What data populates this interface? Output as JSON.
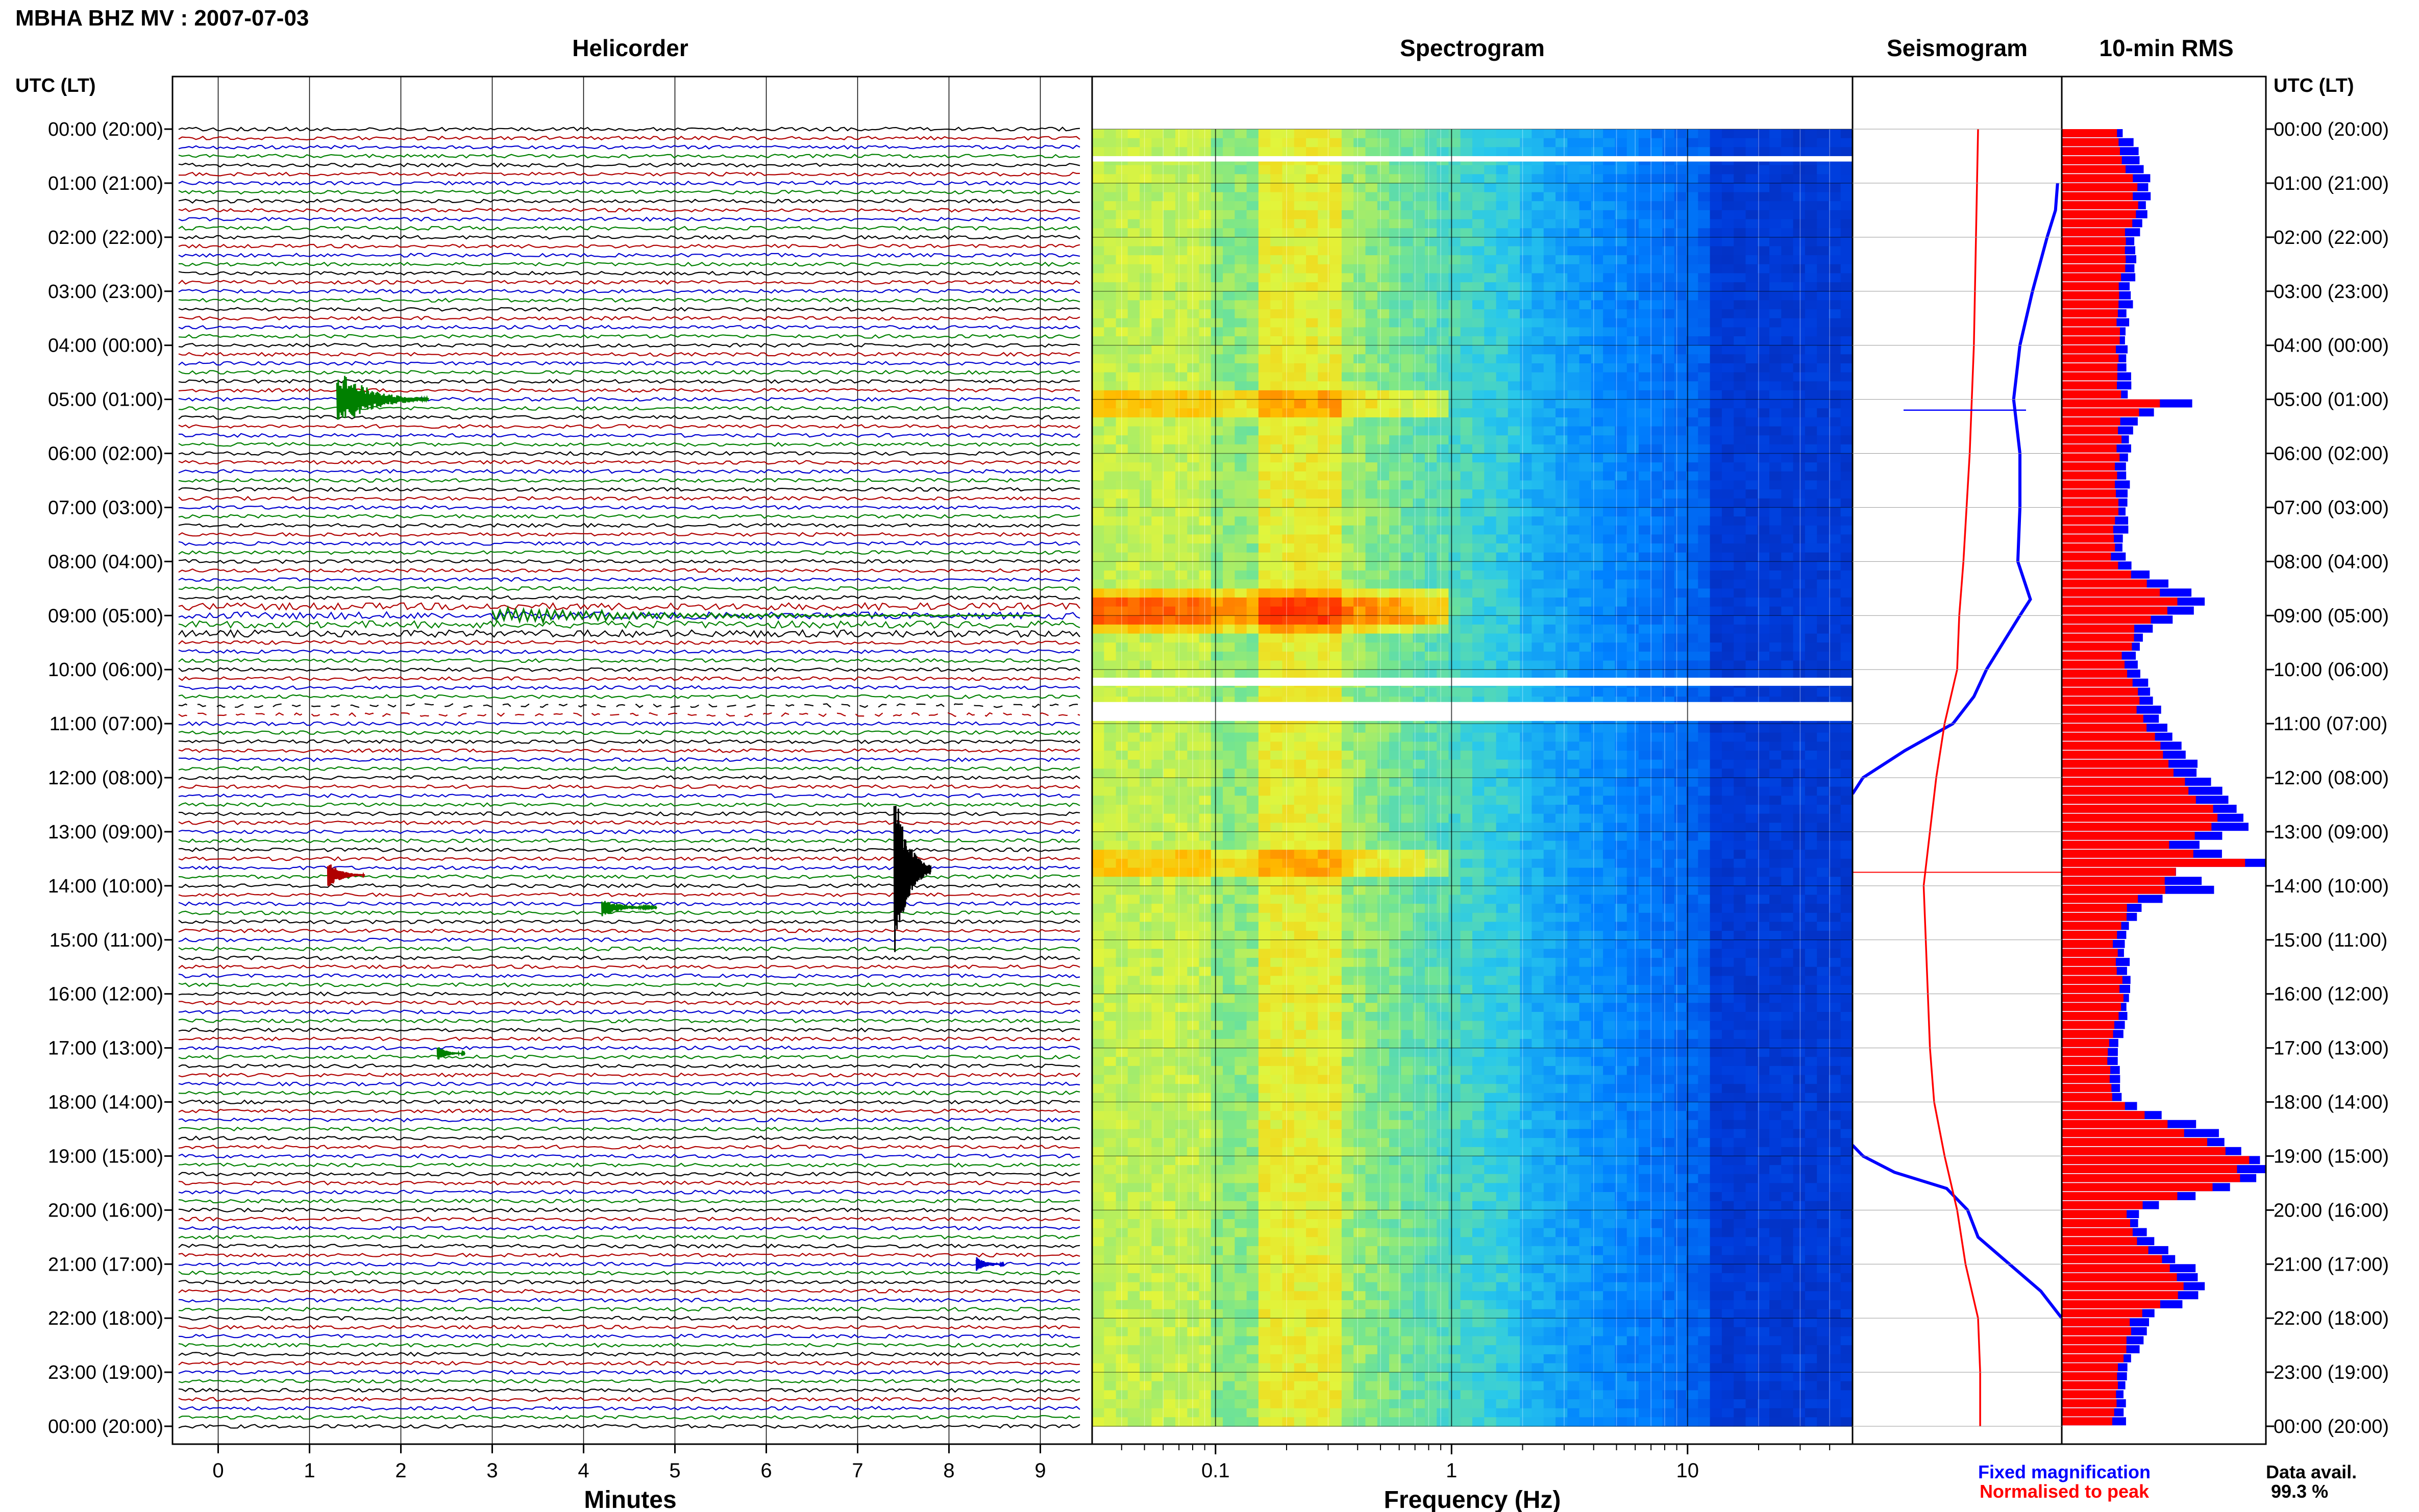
{
  "header": {
    "title": "MBHA BHZ MV : 2007-07-03",
    "panel_titles": [
      "Helicorder",
      "Spectrogram",
      "Seismogram",
      "10-min RMS"
    ],
    "axis_left_title": "UTC (LT)",
    "axis_right_title": "UTC (LT)"
  },
  "footer": {
    "legend_fixed": "Fixed magnification",
    "legend_normalised": "Normalised to peak",
    "data_avail_label": "Data avail.",
    "data_avail_value": "99.3 %"
  },
  "colors": {
    "fixed": "#0000ff",
    "normalised": "#ff0000",
    "trace_colors": [
      "#000000",
      "#b00000",
      "#0000d0",
      "#008000"
    ],
    "spectrogram_low": "#0a22a0",
    "spectrogram_high": "#ff2a00"
  },
  "chart_data": [
    {
      "type": "line",
      "name": "helicorder",
      "title": "Helicorder",
      "xlabel": "Minutes",
      "xticks": [
        "0",
        "1",
        "2",
        "3",
        "4",
        "5",
        "6",
        "7",
        "8",
        "9"
      ],
      "xlim": [
        0,
        10
      ],
      "rows_per_hour": 6,
      "time_labels": [
        "00:00 (20:00)",
        "01:00 (21:00)",
        "02:00 (22:00)",
        "03:00 (23:00)",
        "04:00 (00:00)",
        "05:00 (01:00)",
        "06:00 (02:00)",
        "07:00 (03:00)",
        "08:00 (04:00)",
        "09:00 (05:00)",
        "10:00 (06:00)",
        "11:00 (07:00)",
        "12:00 (08:00)",
        "13:00 (09:00)",
        "14:00 (10:00)",
        "15:00 (11:00)",
        "16:00 (12:00)",
        "17:00 (13:00)",
        "18:00 (14:00)",
        "19:00 (15:00)",
        "20:00 (16:00)",
        "21:00 (17:00)",
        "22:00 (18:00)",
        "23:00 (19:00)",
        "00:00 (20:00)"
      ],
      "events": [
        {
          "hour": 5.0,
          "minute": 1.3,
          "amplitude": 3.5,
          "duration_min": 1.0,
          "color": "#008000"
        },
        {
          "hour": 9.0,
          "minute": 3.0,
          "amplitude": 1.0,
          "duration_min": 6.0,
          "color": "#008000"
        },
        {
          "hour": 13.7,
          "minute": 7.4,
          "amplitude": 10.0,
          "duration_min": 0.4,
          "color": "#000000"
        },
        {
          "hour": 13.8,
          "minute": 1.2,
          "amplitude": 1.5,
          "duration_min": 0.4,
          "color": "#b00000"
        },
        {
          "hour": 14.4,
          "minute": 4.2,
          "amplitude": 1.0,
          "duration_min": 0.6,
          "color": "#008000"
        },
        {
          "hour": 17.1,
          "minute": 2.4,
          "amplitude": 0.8,
          "duration_min": 0.3,
          "color": "#008000"
        },
        {
          "hour": 21.0,
          "minute": 8.3,
          "amplitude": 0.8,
          "duration_min": 0.3,
          "color": "#0000d0"
        }
      ],
      "gaps_hours": [
        [
          10.65,
          10.85
        ]
      ]
    },
    {
      "type": "heatmap",
      "name": "spectrogram",
      "title": "Spectrogram",
      "xlabel": "Frequency (Hz)",
      "xscale": "log",
      "xlim": [
        0.03,
        50
      ],
      "xticks": [
        "0.1",
        "1",
        "10"
      ],
      "dominant_band_hz": [
        0.15,
        0.35
      ],
      "gaps_hours": [
        [
          0.5,
          0.6
        ],
        [
          10.15,
          10.3
        ],
        [
          10.6,
          10.95
        ]
      ],
      "energetic_rows_hours": [
        8.7,
        8.9,
        9.1,
        13.6,
        5.1
      ]
    },
    {
      "type": "line",
      "name": "seismogram",
      "title": "Seismogram",
      "series": [
        {
          "name": "Fixed magnification",
          "color": "#0000ff",
          "x": [
            0,
            0.5,
            1,
            1.5,
            2,
            3,
            4,
            5,
            6,
            7,
            8,
            8.7,
            9,
            9.5,
            10,
            10.5,
            11,
            11.5,
            12,
            12.3,
            13,
            14,
            15,
            16,
            17,
            18,
            18.8,
            19,
            19.3,
            19.6,
            20,
            20.5,
            21,
            21.5,
            22,
            23,
            24
          ],
          "y": [
            null,
            null,
            0.98,
            0.97,
            0.93,
            0.86,
            0.8,
            0.77,
            0.8,
            0.8,
            0.79,
            0.85,
            0.8,
            0.72,
            0.64,
            0.58,
            0.48,
            0.25,
            0.05,
            0.0,
            null,
            null,
            null,
            null,
            null,
            null,
            0.0,
            0.05,
            0.2,
            0.45,
            0.55,
            0.6,
            0.75,
            0.9,
            1.0,
            null,
            null
          ]
        },
        {
          "name": "Normalised to peak",
          "color": "#ff0000",
          "x": [
            0,
            2,
            4,
            6,
            8,
            9,
            10,
            11,
            12,
            13,
            14,
            15,
            16,
            17,
            18,
            19,
            20,
            21,
            22,
            23,
            24
          ],
          "y": [
            0.6,
            0.59,
            0.58,
            0.56,
            0.53,
            0.51,
            0.5,
            0.44,
            0.4,
            0.37,
            0.34,
            0.35,
            0.36,
            0.37,
            0.39,
            0.44,
            0.5,
            0.54,
            0.6,
            0.61,
            0.61
          ]
        }
      ],
      "ylim": [
        0,
        24
      ]
    },
    {
      "type": "bar",
      "name": "10-min RMS",
      "title": "10-min RMS",
      "orientation": "horizontal",
      "bins": 144,
      "profile_hours": [
        0,
        0.5,
        1,
        1.5,
        2,
        2.5,
        3,
        4,
        5,
        5.1,
        5.3,
        6,
        7,
        8,
        8.6,
        8.8,
        9.2,
        9.8,
        10.3,
        11,
        11.5,
        12,
        12.5,
        12.9,
        13.3,
        13.6,
        13.8,
        14,
        14.3,
        15,
        16,
        17,
        18,
        18.5,
        19,
        19.3,
        19.6,
        20,
        20.5,
        21,
        21.5,
        22,
        23,
        24
      ],
      "red_rms": [
        0.25,
        0.3,
        0.35,
        0.37,
        0.3,
        0.3,
        0.28,
        0.27,
        0.28,
        0.55,
        0.3,
        0.27,
        0.27,
        0.25,
        0.5,
        0.6,
        0.38,
        0.3,
        0.35,
        0.4,
        0.5,
        0.55,
        0.7,
        0.75,
        0.5,
        0.95,
        0.4,
        0.6,
        0.35,
        0.25,
        0.3,
        0.22,
        0.25,
        0.55,
        0.88,
        0.9,
        0.75,
        0.3,
        0.35,
        0.5,
        0.6,
        0.35,
        0.28,
        0.25
      ],
      "blue_rms": [
        0.3,
        0.38,
        0.43,
        0.43,
        0.37,
        0.36,
        0.34,
        0.32,
        0.34,
        0.7,
        0.36,
        0.33,
        0.32,
        0.3,
        0.65,
        0.7,
        0.45,
        0.36,
        0.42,
        0.5,
        0.6,
        0.68,
        0.85,
        0.95,
        0.6,
        1.0,
        0.45,
        0.85,
        0.4,
        0.3,
        0.35,
        0.27,
        0.3,
        0.7,
        0.95,
        1.0,
        0.85,
        0.36,
        0.42,
        0.6,
        0.75,
        0.42,
        0.33,
        0.3
      ]
    }
  ]
}
